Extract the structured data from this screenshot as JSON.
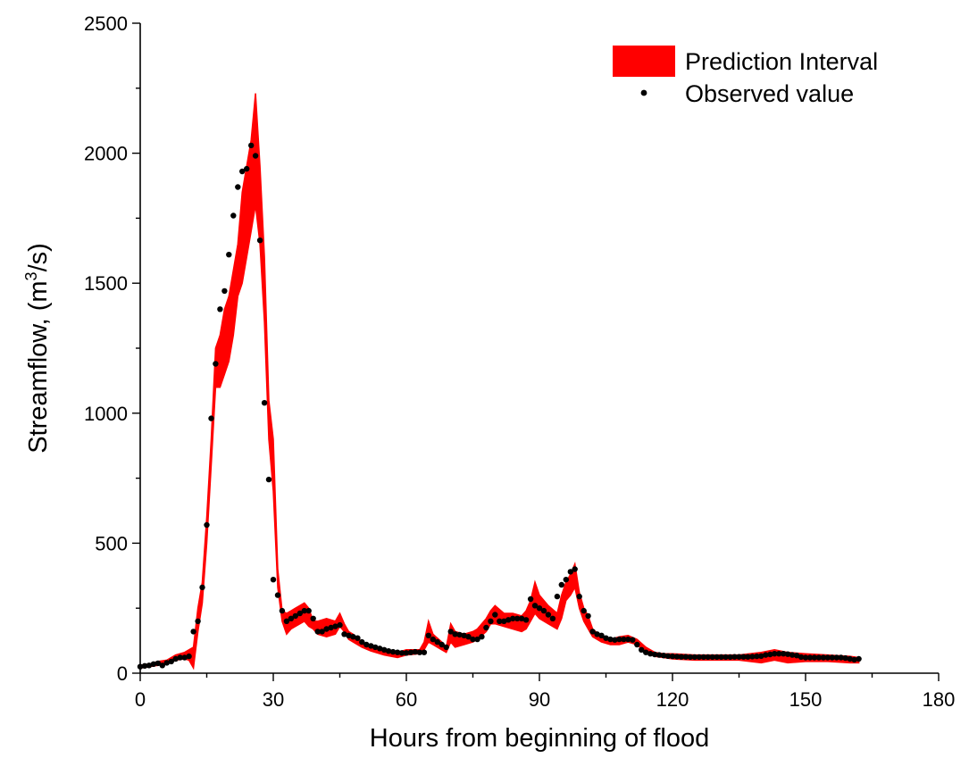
{
  "chart_data": {
    "type": "area",
    "xlabel": "Hours from beginning of flood",
    "ylabel_main": "Streamflow, (m",
    "ylabel_sup": "3",
    "ylabel_end": "/s)",
    "xlim": [
      0,
      180
    ],
    "ylim": [
      0,
      2500
    ],
    "xticks": [
      0,
      30,
      60,
      90,
      120,
      150,
      180
    ],
    "yticks": [
      0,
      500,
      1000,
      1500,
      2000,
      2500
    ],
    "legend": {
      "position": "top-right",
      "items": [
        {
          "label": "Prediction Interval",
          "kind": "band",
          "color": "#ff0000"
        },
        {
          "label": "Observed value",
          "kind": "dot",
          "color": "#000000"
        }
      ]
    },
    "series": [
      {
        "name": "Prediction Interval",
        "color": "#ff0000",
        "x": [
          0,
          2,
          4,
          6,
          8,
          10,
          11,
          12,
          13,
          14,
          15,
          16,
          17,
          18,
          19,
          20,
          21,
          22,
          23,
          24,
          25,
          26,
          27,
          28,
          29,
          30,
          31,
          32,
          33,
          34,
          35,
          36,
          37,
          38,
          39,
          40,
          42,
          44,
          45,
          46,
          47,
          48,
          50,
          52,
          55,
          58,
          60,
          63,
          64,
          65,
          66,
          68,
          69,
          70,
          71,
          73,
          75,
          76,
          78,
          79,
          80,
          82,
          84,
          86,
          87,
          88,
          89,
          90,
          92,
          94,
          95,
          96,
          97,
          98,
          99,
          100,
          101,
          102,
          104,
          106,
          108,
          110,
          112,
          114,
          116,
          118,
          120,
          125,
          130,
          135,
          140,
          143,
          146,
          150,
          155,
          160,
          162
        ],
        "lower": [
          20,
          25,
          30,
          35,
          50,
          55,
          50,
          20,
          160,
          270,
          500,
          800,
          1100,
          1100,
          1150,
          1200,
          1300,
          1450,
          1500,
          1600,
          1700,
          1800,
          1650,
          1350,
          900,
          700,
          330,
          200,
          150,
          170,
          180,
          190,
          200,
          180,
          170,
          150,
          140,
          150,
          180,
          160,
          130,
          120,
          100,
          85,
          70,
          60,
          70,
          75,
          90,
          120,
          110,
          90,
          80,
          120,
          100,
          110,
          120,
          130,
          160,
          190,
          190,
          180,
          170,
          160,
          170,
          200,
          230,
          210,
          190,
          170,
          210,
          280,
          300,
          330,
          250,
          200,
          170,
          140,
          120,
          110,
          110,
          120,
          110,
          80,
          65,
          60,
          55,
          50,
          50,
          50,
          40,
          50,
          40,
          45,
          45,
          40,
          40
        ],
        "upper": [
          30,
          35,
          45,
          50,
          70,
          80,
          90,
          100,
          250,
          350,
          600,
          900,
          1250,
          1300,
          1400,
          1450,
          1550,
          1650,
          1850,
          1950,
          2050,
          2230,
          1950,
          1600,
          1050,
          900,
          400,
          240,
          230,
          240,
          250,
          260,
          270,
          250,
          200,
          200,
          210,
          200,
          230,
          190,
          160,
          150,
          120,
          105,
          90,
          80,
          90,
          90,
          120,
          200,
          150,
          120,
          100,
          190,
          160,
          150,
          160,
          170,
          210,
          240,
          260,
          230,
          230,
          220,
          240,
          280,
          350,
          300,
          260,
          230,
          300,
          350,
          380,
          420,
          310,
          250,
          220,
          170,
          140,
          130,
          140,
          145,
          130,
          100,
          80,
          75,
          75,
          70,
          70,
          70,
          80,
          90,
          80,
          75,
          70,
          65,
          60
        ]
      },
      {
        "name": "Observed value",
        "color": "#000000",
        "x": [
          0,
          1,
          2,
          3,
          4,
          5,
          6,
          7,
          8,
          9,
          10,
          11,
          12,
          13,
          14,
          15,
          16,
          17,
          18,
          19,
          20,
          21,
          22,
          23,
          24,
          25,
          26,
          27,
          28,
          29,
          30,
          31,
          32,
          33,
          34,
          35,
          36,
          37,
          38,
          39,
          40,
          41,
          42,
          43,
          44,
          45,
          46,
          47,
          48,
          49,
          50,
          51,
          52,
          53,
          54,
          55,
          56,
          57,
          58,
          59,
          60,
          61,
          62,
          63,
          64,
          65,
          66,
          67,
          68,
          69,
          70,
          71,
          72,
          73,
          74,
          75,
          76,
          77,
          78,
          79,
          80,
          81,
          82,
          83,
          84,
          85,
          86,
          87,
          88,
          89,
          90,
          91,
          92,
          93,
          94,
          95,
          96,
          97,
          98,
          99,
          100,
          101,
          102,
          103,
          104,
          105,
          106,
          107,
          108,
          109,
          110,
          111,
          112,
          113,
          114,
          115,
          116,
          117,
          118,
          119,
          120,
          121,
          122,
          123,
          124,
          125,
          126,
          127,
          128,
          129,
          130,
          131,
          132,
          133,
          134,
          135,
          136,
          137,
          138,
          139,
          140,
          141,
          142,
          143,
          144,
          145,
          146,
          147,
          148,
          149,
          150,
          151,
          152,
          153,
          154,
          155,
          156,
          157,
          158,
          159,
          160,
          161,
          162
        ],
        "y": [
          25,
          28,
          30,
          35,
          38,
          30,
          40,
          45,
          55,
          60,
          60,
          65,
          160,
          200,
          330,
          570,
          980,
          1190,
          1400,
          1470,
          1610,
          1760,
          1870,
          1930,
          1940,
          2030,
          1990,
          1665,
          1040,
          745,
          360,
          300,
          240,
          200,
          210,
          220,
          230,
          240,
          240,
          210,
          160,
          160,
          170,
          175,
          180,
          185,
          150,
          145,
          140,
          135,
          120,
          110,
          105,
          100,
          95,
          90,
          85,
          82,
          80,
          78,
          78,
          80,
          82,
          80,
          80,
          145,
          130,
          120,
          110,
          100,
          160,
          150,
          148,
          145,
          140,
          130,
          130,
          140,
          175,
          200,
          225,
          200,
          200,
          205,
          210,
          210,
          210,
          205,
          285,
          260,
          250,
          240,
          225,
          210,
          295,
          340,
          360,
          390,
          400,
          295,
          240,
          220,
          160,
          150,
          145,
          135,
          130,
          128,
          130,
          130,
          130,
          128,
          110,
          90,
          80,
          75,
          72,
          70,
          68,
          66,
          65,
          64,
          63,
          63,
          62,
          62,
          62,
          62,
          62,
          62,
          62,
          62,
          62,
          62,
          63,
          63,
          63,
          63,
          64,
          65,
          66,
          70,
          72,
          75,
          75,
          75,
          73,
          70,
          68,
          62,
          60,
          60,
          60,
          60,
          60,
          60,
          60,
          60,
          60,
          58,
          55,
          52,
          55
        ]
      }
    ]
  }
}
